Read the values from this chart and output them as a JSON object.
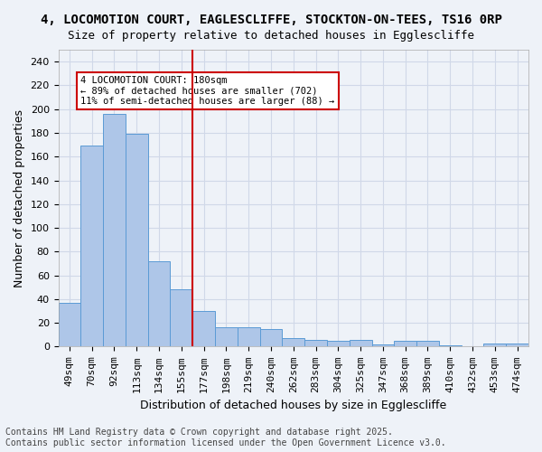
{
  "title_line1": "4, LOCOMOTION COURT, EAGLESCLIFFE, STOCKTON-ON-TEES, TS16 0RP",
  "title_line2": "Size of property relative to detached houses in Egglescliffe",
  "xlabel": "Distribution of detached houses by size in Egglescliffe",
  "ylabel": "Number of detached properties",
  "categories": [
    "49sqm",
    "70sqm",
    "92sqm",
    "113sqm",
    "134sqm",
    "155sqm",
    "177sqm",
    "198sqm",
    "219sqm",
    "240sqm",
    "262sqm",
    "283sqm",
    "304sqm",
    "325sqm",
    "347sqm",
    "368sqm",
    "389sqm",
    "410sqm",
    "432sqm",
    "453sqm",
    "474sqm"
  ],
  "values": [
    37,
    169,
    196,
    179,
    72,
    48,
    30,
    16,
    16,
    15,
    7,
    6,
    5,
    6,
    2,
    5,
    5,
    1,
    0,
    3,
    3
  ],
  "bar_color": "#aec6e8",
  "bar_edge_color": "#5b9bd5",
  "vline_x": 6,
  "vline_color": "#cc0000",
  "annotation_text": "4 LOCOMOTION COURT: 180sqm\n← 89% of detached houses are smaller (702)\n11% of semi-detached houses are larger (88) →",
  "annotation_box_color": "#ffffff",
  "annotation_box_edge": "#cc0000",
  "ylim": [
    0,
    250
  ],
  "yticks": [
    0,
    20,
    40,
    60,
    80,
    100,
    120,
    140,
    160,
    180,
    200,
    220,
    240
  ],
  "grid_color": "#d0d8e8",
  "background_color": "#eef2f8",
  "footer_text": "Contains HM Land Registry data © Crown copyright and database right 2025.\nContains public sector information licensed under the Open Government Licence v3.0.",
  "title_fontsize": 10,
  "axis_label_fontsize": 9,
  "tick_fontsize": 8,
  "footer_fontsize": 7
}
